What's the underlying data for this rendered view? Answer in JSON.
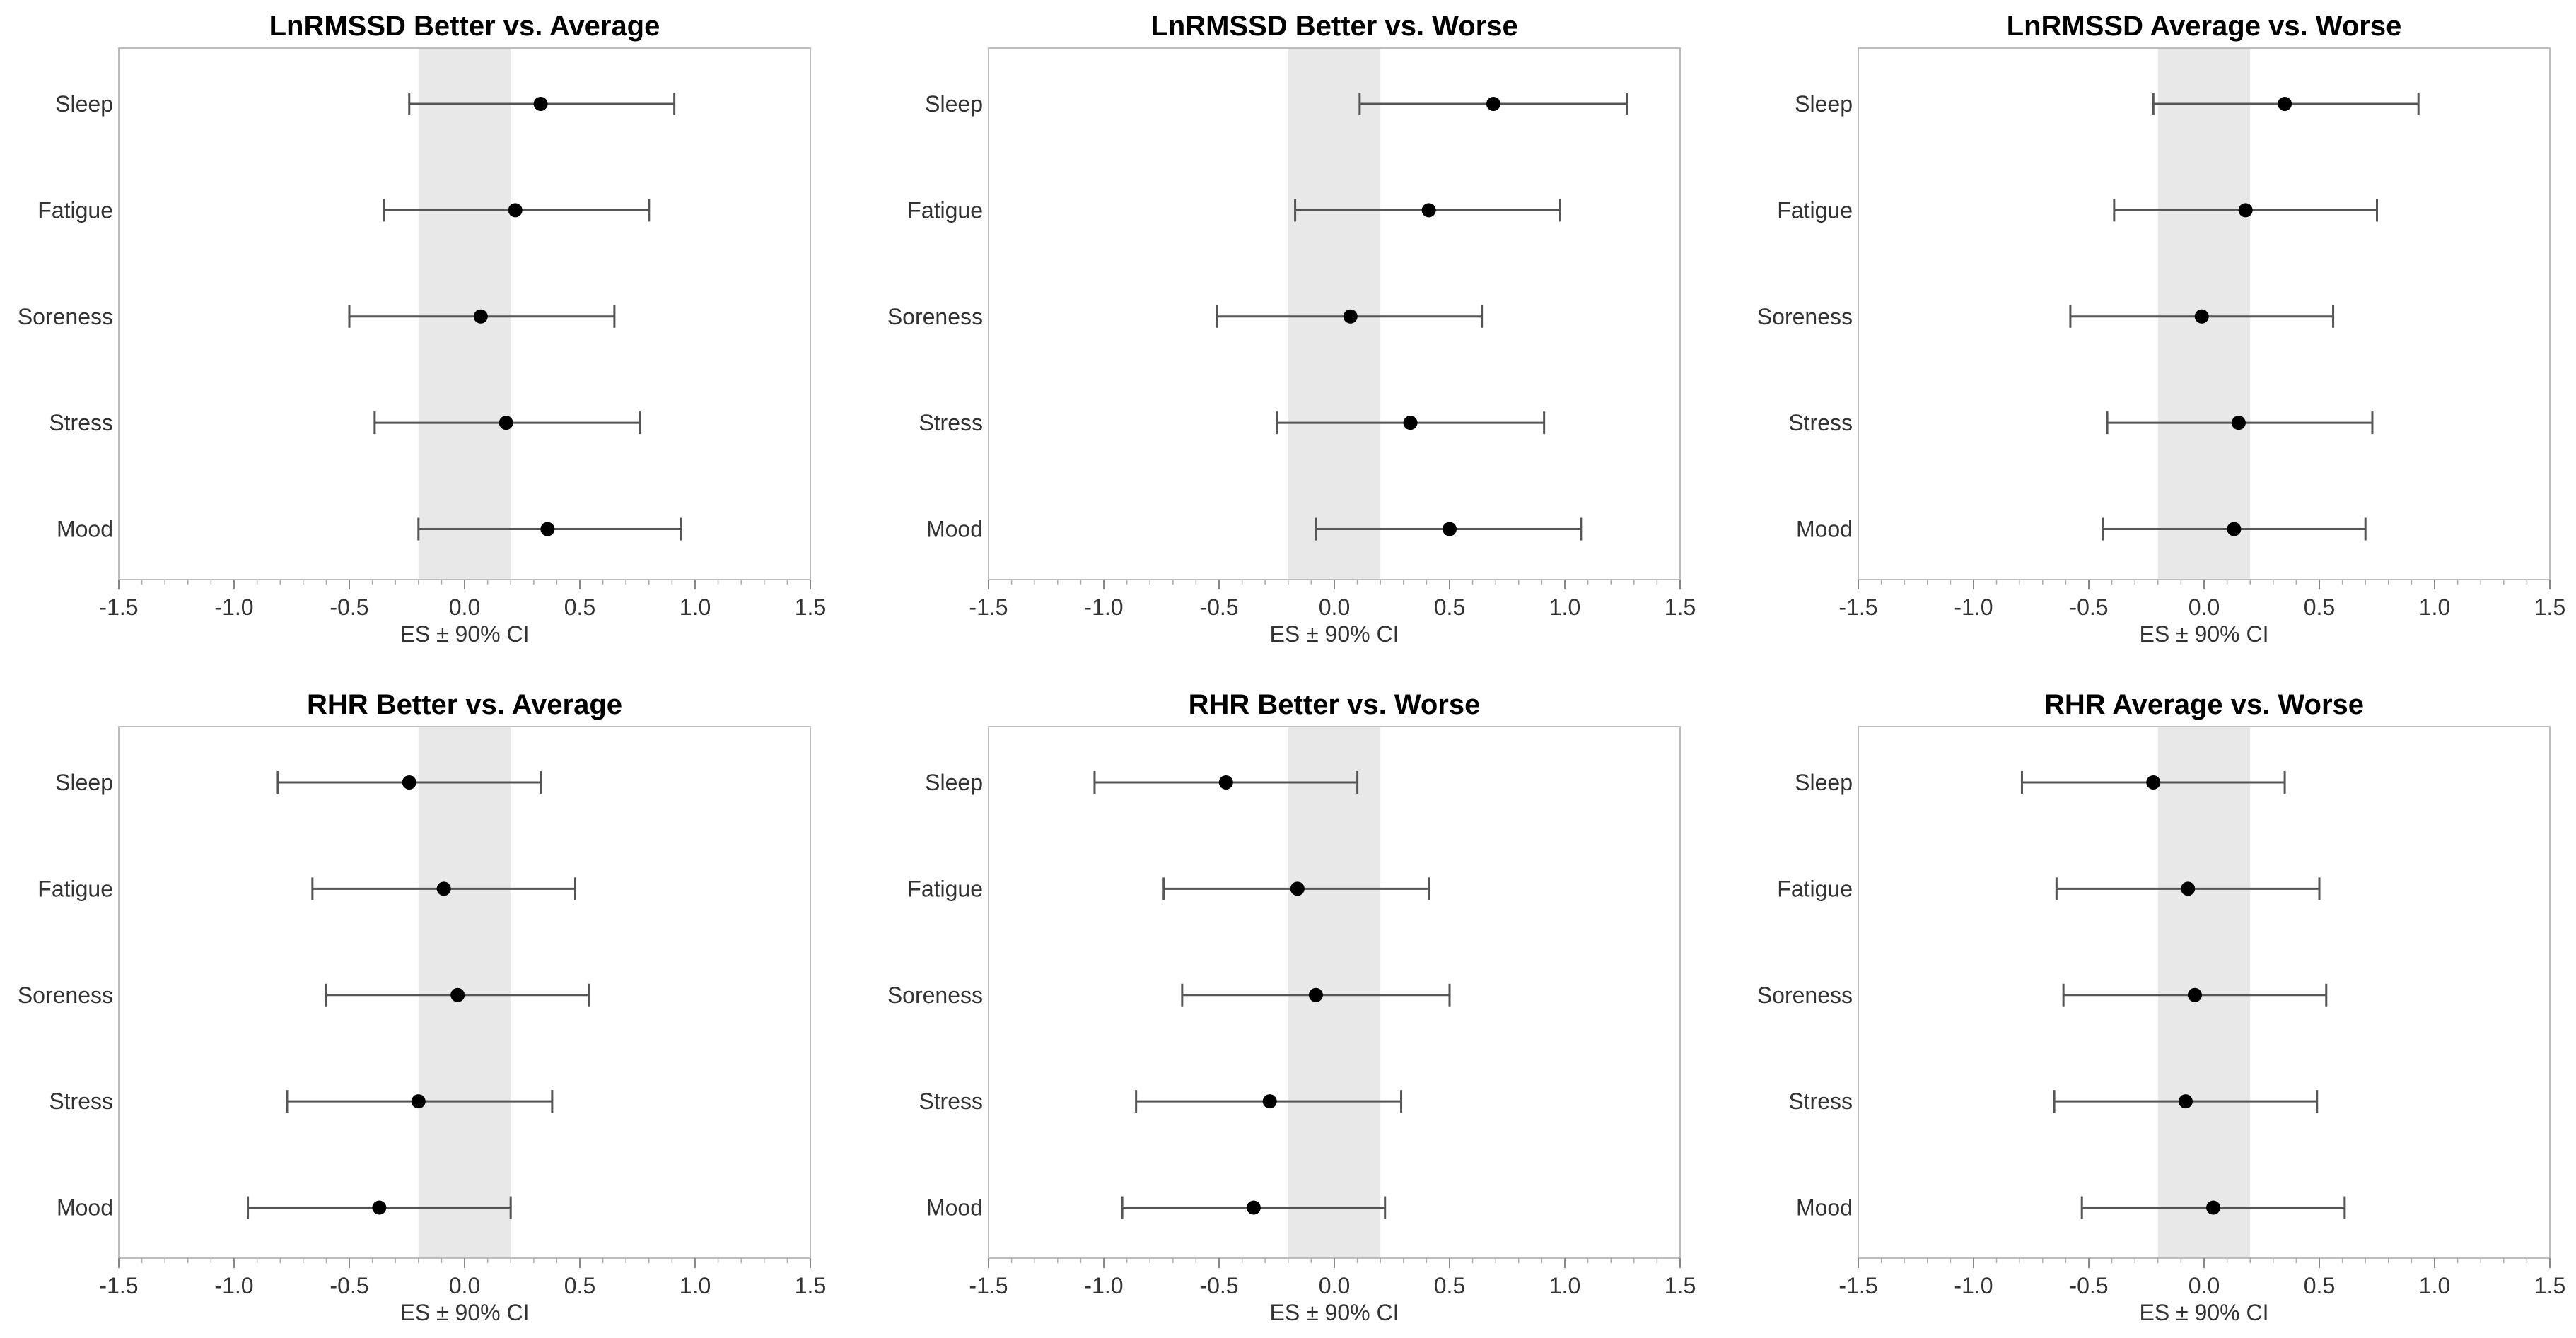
{
  "chart_data": [
    {
      "type": "forest",
      "title": "LnRMSSD Better vs. Average",
      "xlabel": "ES ± 90% CI",
      "xlim": [
        -1.5,
        1.5
      ],
      "xticks": [
        "-1.5",
        "-1.0",
        "-0.5",
        "0.0",
        "0.5",
        "1.0",
        "1.5"
      ],
      "trivial_band": [
        -0.2,
        0.2
      ],
      "categories": [
        "Sleep",
        "Fatigue",
        "Soreness",
        "Stress",
        "Mood"
      ],
      "es": [
        0.33,
        0.22,
        0.07,
        0.18,
        0.36
      ],
      "lower": [
        -0.24,
        -0.35,
        -0.5,
        -0.39,
        -0.2
      ],
      "upper": [
        0.91,
        0.8,
        0.65,
        0.76,
        0.94
      ]
    },
    {
      "type": "forest",
      "title": "LnRMSSD Better vs. Worse",
      "xlabel": "ES ± 90% CI",
      "xlim": [
        -1.5,
        1.5
      ],
      "xticks": [
        "-1.5",
        "-1.0",
        "-0.5",
        "0.0",
        "0.5",
        "1.0",
        "1.5"
      ],
      "trivial_band": [
        -0.2,
        0.2
      ],
      "categories": [
        "Sleep",
        "Fatigue",
        "Soreness",
        "Stress",
        "Mood"
      ],
      "es": [
        0.69,
        0.41,
        0.07,
        0.33,
        0.5
      ],
      "lower": [
        0.11,
        -0.17,
        -0.51,
        -0.25,
        -0.08
      ],
      "upper": [
        1.27,
        0.98,
        0.64,
        0.91,
        1.07
      ]
    },
    {
      "type": "forest",
      "title": "LnRMSSD Average vs. Worse",
      "xlabel": "ES ± 90% CI",
      "xlim": [
        -1.5,
        1.5
      ],
      "xticks": [
        "-1.5",
        "-1.0",
        "-0.5",
        "0.0",
        "0.5",
        "1.0",
        "1.5"
      ],
      "trivial_band": [
        -0.2,
        0.2
      ],
      "categories": [
        "Sleep",
        "Fatigue",
        "Soreness",
        "Stress",
        "Mood"
      ],
      "es": [
        0.35,
        0.18,
        -0.01,
        0.15,
        0.13
      ],
      "lower": [
        -0.22,
        -0.39,
        -0.58,
        -0.42,
        -0.44
      ],
      "upper": [
        0.93,
        0.75,
        0.56,
        0.73,
        0.7
      ]
    },
    {
      "type": "forest",
      "title": "RHR Better vs. Average",
      "xlabel": "ES ± 90% CI",
      "xlim": [
        -1.5,
        1.5
      ],
      "xticks": [
        "-1.5",
        "-1.0",
        "-0.5",
        "0.0",
        "0.5",
        "1.0",
        "1.5"
      ],
      "trivial_band": [
        -0.2,
        0.2
      ],
      "categories": [
        "Sleep",
        "Fatigue",
        "Soreness",
        "Stress",
        "Mood"
      ],
      "es": [
        -0.24,
        -0.09,
        -0.03,
        -0.2,
        -0.37
      ],
      "lower": [
        -0.81,
        -0.66,
        -0.6,
        -0.77,
        -0.94
      ],
      "upper": [
        0.33,
        0.48,
        0.54,
        0.38,
        0.2
      ]
    },
    {
      "type": "forest",
      "title": "RHR Better vs. Worse",
      "xlabel": "ES ± 90% CI",
      "xlim": [
        -1.5,
        1.5
      ],
      "xticks": [
        "-1.5",
        "-1.0",
        "-0.5",
        "0.0",
        "0.5",
        "1.0",
        "1.5"
      ],
      "trivial_band": [
        -0.2,
        0.2
      ],
      "categories": [
        "Sleep",
        "Fatigue",
        "Soreness",
        "Stress",
        "Mood"
      ],
      "es": [
        -0.47,
        -0.16,
        -0.08,
        -0.28,
        -0.35
      ],
      "lower": [
        -1.04,
        -0.74,
        -0.66,
        -0.86,
        -0.92
      ],
      "upper": [
        0.1,
        0.41,
        0.5,
        0.29,
        0.22
      ]
    },
    {
      "type": "forest",
      "title": "RHR Average vs. Worse",
      "xlabel": "ES ± 90% CI",
      "xlim": [
        -1.5,
        1.5
      ],
      "xticks": [
        "-1.5",
        "-1.0",
        "-0.5",
        "0.0",
        "0.5",
        "1.0",
        "1.5"
      ],
      "trivial_band": [
        -0.2,
        0.2
      ],
      "categories": [
        "Sleep",
        "Fatigue",
        "Soreness",
        "Stress",
        "Mood"
      ],
      "es": [
        -0.22,
        -0.07,
        -0.04,
        -0.08,
        0.04
      ],
      "lower": [
        -0.79,
        -0.64,
        -0.61,
        -0.65,
        -0.53
      ],
      "upper": [
        0.35,
        0.5,
        0.53,
        0.49,
        0.61
      ]
    }
  ],
  "colors": {
    "point": "#000000",
    "errorbar": "#555555",
    "band": "#e8e8e8",
    "frame": "#bdbdbd",
    "text": "#333333"
  }
}
